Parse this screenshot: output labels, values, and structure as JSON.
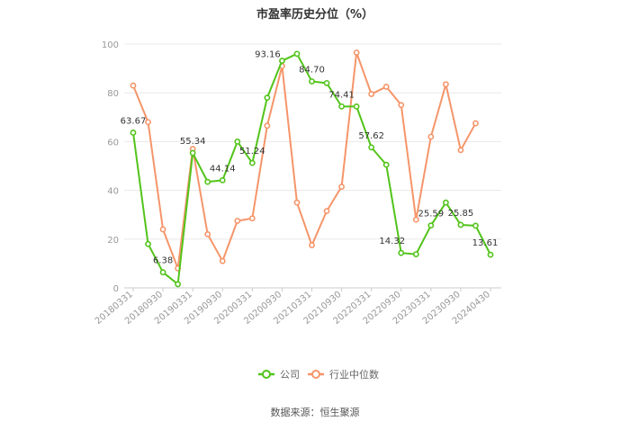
{
  "chart_data": {
    "type": "line",
    "title": "市盈率历史分位（%）",
    "ylim": [
      0,
      100
    ],
    "yticks": [
      0,
      20,
      40,
      60,
      80,
      100
    ],
    "grid": true,
    "legend_position": "bottom",
    "x_tick_labels": [
      "20180331",
      "20180930",
      "20190331",
      "20190930",
      "20200331",
      "20200930",
      "20210331",
      "20210930",
      "20220331",
      "20220930",
      "20230331",
      "20230930",
      "20240430"
    ],
    "x": [
      "20180331",
      "20180630",
      "20180930",
      "20181231",
      "20190331",
      "20190630",
      "20190930",
      "20191231",
      "20200331",
      "20200630",
      "20200930",
      "20201231",
      "20210331",
      "20210630",
      "20210930",
      "20211231",
      "20220331",
      "20220630",
      "20220930",
      "20221231",
      "20230331",
      "20230630",
      "20230930",
      "20231231",
      "20240430"
    ],
    "series": [
      {
        "name": "公司",
        "color": "#52c41a",
        "values": [
          63.67,
          18,
          6.38,
          1.5,
          55.34,
          43.5,
          44.14,
          60,
          51.24,
          78,
          93.16,
          96,
          84.7,
          84,
          74.41,
          74.4,
          57.62,
          50.5,
          14.32,
          13.8,
          25.59,
          35,
          25.85,
          25.5,
          13.61
        ],
        "labels": {
          "0": "63.67",
          "2": "6.38",
          "4": "55.34",
          "6": "44.14",
          "8": "51.24",
          "10": "93.16",
          "12": "84.70",
          "14": "74.41",
          "16": "57.62",
          "18": "14.32",
          "20": "25.59",
          "22": "25.85",
          "24": "13.61"
        }
      },
      {
        "name": "行业中位数",
        "color": "#f5956a",
        "values": [
          83,
          68,
          24,
          8,
          57,
          22,
          11,
          27.5,
          28.5,
          66.5,
          91,
          35,
          17.5,
          31.5,
          41.5,
          96.5,
          79.5,
          82.5,
          75,
          28,
          62,
          83.5,
          56.5,
          67.5,
          null
        ]
      }
    ]
  },
  "source_text": "数据来源：恒生聚源"
}
